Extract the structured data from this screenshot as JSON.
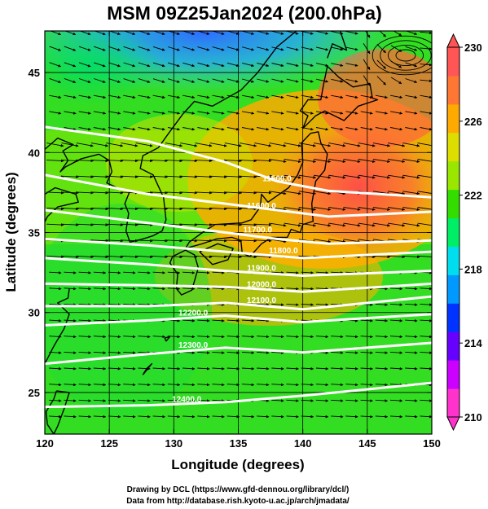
{
  "title": "MSM 09Z25Jan2024 (200.0hPa)",
  "axes": {
    "xlabel": "Longitude (degrees)",
    "ylabel": "Latitude  (degrees)",
    "xticks": [
      120,
      125,
      130,
      135,
      140,
      145,
      150
    ],
    "yticks": [
      25,
      30,
      35,
      40,
      45
    ],
    "xlim": [
      120,
      150
    ],
    "ylim": [
      22.4,
      47.6
    ]
  },
  "colorbar": {
    "min": 210,
    "max": 230,
    "labels": [
      "230",
      "226",
      "222",
      "218",
      "214",
      "210"
    ],
    "label_values": [
      230,
      226,
      222,
      218,
      214,
      210
    ],
    "colors": [
      "#ff33cc",
      "#cc00ff",
      "#6600ff",
      "#0033ff",
      "#0099ff",
      "#00ddee",
      "#00ee66",
      "#33dd00",
      "#99e600",
      "#dddd00",
      "#ffaa00",
      "#ff7733",
      "#ff5555"
    ]
  },
  "contours": [
    {
      "label": "11500.0",
      "lon": 138.0,
      "lat": 38.2
    },
    {
      "label": "11600.0",
      "lon": 136.8,
      "lat": 36.5
    },
    {
      "label": "11700.0",
      "lon": 136.5,
      "lat": 35.0
    },
    {
      "label": "11800.0",
      "lon": 138.5,
      "lat": 33.7
    },
    {
      "label": "11900.0",
      "lon": 136.8,
      "lat": 32.6
    },
    {
      "label": "12000.0",
      "lon": 136.8,
      "lat": 31.6
    },
    {
      "label": "12100.0",
      "lon": 136.8,
      "lat": 30.6
    },
    {
      "label": "12200.0",
      "lon": 131.5,
      "lat": 29.8
    },
    {
      "label": "12300.0",
      "lon": 131.5,
      "lat": 27.8
    },
    {
      "label": "12400.0",
      "lon": 131.0,
      "lat": 24.4
    }
  ],
  "credits": [
    "Drawing by DCL (https://www.gfd-dennou.org/library/dcl/)",
    "Data from http://database.rish.kyoto-u.ac.jp/arch/jmadata/"
  ],
  "chart_data": {
    "type": "heatmap",
    "title": "MSM 09Z25Jan2024 (200.0hPa)",
    "xlabel": "Longitude (degrees)",
    "ylabel": "Latitude  (degrees)",
    "xlim": [
      120,
      150
    ],
    "ylim": [
      22.4,
      47.6
    ],
    "color_range": [
      210,
      230
    ],
    "overlays": [
      "wind vectors",
      "height contours (m)",
      "coastlines",
      "grid"
    ],
    "contour_levels": [
      11500,
      11600,
      11700,
      11800,
      11900,
      12000,
      12100,
      12200,
      12300,
      12400
    ]
  }
}
